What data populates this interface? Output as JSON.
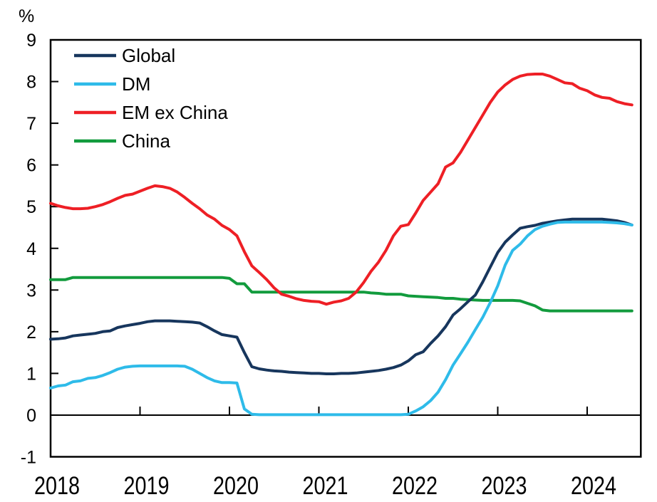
{
  "chart_data": {
    "type": "line",
    "title": "",
    "ylabel": "%",
    "xlabel": "",
    "ylim": [
      -1,
      9
    ],
    "yticks": [
      -1,
      0,
      1,
      2,
      3,
      4,
      5,
      6,
      7,
      8,
      9
    ],
    "xtick_years": [
      "2018",
      "2019",
      "2020",
      "2021",
      "2022",
      "2023",
      "2024"
    ],
    "x_start": "2018-01",
    "x_end": "2024-07",
    "x_frequency": "monthly",
    "grid": false,
    "legend_position": "top-left-inside",
    "axis_color": "#000000",
    "series": [
      {
        "name": "Global",
        "color": "#17365d",
        "values": [
          1.82,
          1.83,
          1.85,
          1.9,
          1.92,
          1.94,
          1.96,
          2.0,
          2.02,
          2.1,
          2.14,
          2.17,
          2.2,
          2.24,
          2.26,
          2.26,
          2.26,
          2.25,
          2.24,
          2.23,
          2.21,
          2.12,
          2.02,
          1.93,
          1.9,
          1.87,
          1.5,
          1.16,
          1.11,
          1.08,
          1.06,
          1.05,
          1.03,
          1.02,
          1.01,
          1.0,
          1.0,
          0.99,
          0.99,
          1.0,
          1.0,
          1.01,
          1.03,
          1.05,
          1.07,
          1.1,
          1.14,
          1.2,
          1.3,
          1.45,
          1.52,
          1.72,
          1.9,
          2.12,
          2.4,
          2.55,
          2.72,
          2.88,
          3.2,
          3.55,
          3.9,
          4.15,
          4.32,
          4.48,
          4.52,
          4.55,
          4.6,
          4.63,
          4.66,
          4.68,
          4.7,
          4.7,
          4.7,
          4.7,
          4.7,
          4.68,
          4.66,
          4.62,
          4.56
        ]
      },
      {
        "name": "DM",
        "color": "#2ebbe9",
        "values": [
          0.65,
          0.7,
          0.72,
          0.8,
          0.82,
          0.88,
          0.9,
          0.95,
          1.02,
          1.1,
          1.15,
          1.17,
          1.18,
          1.18,
          1.18,
          1.18,
          1.18,
          1.18,
          1.17,
          1.1,
          1.0,
          0.9,
          0.82,
          0.78,
          0.78,
          0.77,
          0.15,
          0.02,
          0.01,
          0.01,
          0.01,
          0.01,
          0.01,
          0.01,
          0.01,
          0.01,
          0.01,
          0.01,
          0.01,
          0.01,
          0.01,
          0.01,
          0.01,
          0.01,
          0.01,
          0.01,
          0.01,
          0.01,
          0.02,
          0.1,
          0.2,
          0.35,
          0.55,
          0.85,
          1.2,
          1.47,
          1.75,
          2.05,
          2.35,
          2.7,
          3.1,
          3.6,
          3.95,
          4.1,
          4.3,
          4.45,
          4.53,
          4.58,
          4.62,
          4.63,
          4.63,
          4.63,
          4.63,
          4.63,
          4.63,
          4.62,
          4.61,
          4.59,
          4.56
        ]
      },
      {
        "name": "EM ex China",
        "color": "#ee1f25",
        "values": [
          5.08,
          5.02,
          4.98,
          4.95,
          4.95,
          4.96,
          5.0,
          5.05,
          5.12,
          5.2,
          5.27,
          5.3,
          5.37,
          5.44,
          5.5,
          5.48,
          5.44,
          5.35,
          5.22,
          5.08,
          4.95,
          4.8,
          4.7,
          4.55,
          4.45,
          4.3,
          3.92,
          3.58,
          3.42,
          3.25,
          3.05,
          2.9,
          2.85,
          2.79,
          2.75,
          2.73,
          2.72,
          2.66,
          2.71,
          2.74,
          2.8,
          2.95,
          3.18,
          3.45,
          3.67,
          3.95,
          4.3,
          4.53,
          4.57,
          4.85,
          5.15,
          5.35,
          5.55,
          5.95,
          6.05,
          6.3,
          6.6,
          6.9,
          7.2,
          7.5,
          7.75,
          7.92,
          8.05,
          8.13,
          8.17,
          8.18,
          8.18,
          8.13,
          8.05,
          7.97,
          7.95,
          7.84,
          7.78,
          7.68,
          7.62,
          7.6,
          7.52,
          7.47,
          7.44
        ]
      },
      {
        "name": "China",
        "color": "#129b3d",
        "values": [
          3.25,
          3.25,
          3.25,
          3.3,
          3.3,
          3.3,
          3.3,
          3.3,
          3.3,
          3.3,
          3.3,
          3.3,
          3.3,
          3.3,
          3.3,
          3.3,
          3.3,
          3.3,
          3.3,
          3.3,
          3.3,
          3.3,
          3.3,
          3.3,
          3.28,
          3.15,
          3.15,
          2.95,
          2.95,
          2.95,
          2.95,
          2.95,
          2.95,
          2.95,
          2.95,
          2.95,
          2.95,
          2.95,
          2.95,
          2.95,
          2.95,
          2.95,
          2.95,
          2.93,
          2.92,
          2.9,
          2.9,
          2.9,
          2.86,
          2.85,
          2.84,
          2.83,
          2.82,
          2.8,
          2.8,
          2.78,
          2.77,
          2.76,
          2.75,
          2.75,
          2.75,
          2.75,
          2.75,
          2.74,
          2.68,
          2.62,
          2.52,
          2.5,
          2.5,
          2.5,
          2.5,
          2.5,
          2.5,
          2.5,
          2.5,
          2.5,
          2.5,
          2.5,
          2.5
        ]
      }
    ]
  }
}
